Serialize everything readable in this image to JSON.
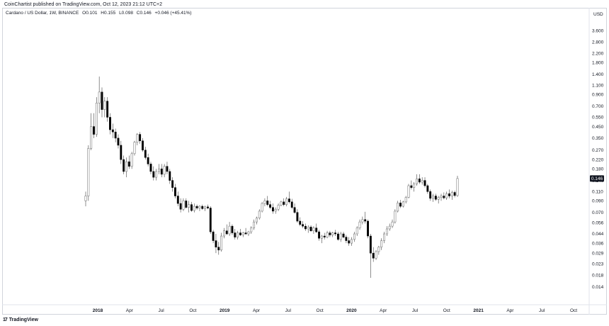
{
  "header": {
    "published": "CoinChartist published on TradingView.com, Oct 12, 2023 21:12 UTC+2"
  },
  "legend": {
    "symbol": "Cardano / US Dollar, 1W, BINANCE",
    "open": "O0.101",
    "high": "H0.155",
    "low": "L0.098",
    "close": "C0.146",
    "change": "+0.046 (+45.41%)"
  },
  "footer": {
    "logo_mark": "17",
    "brand": "TradingView"
  },
  "chart_data": {
    "type": "candlestick",
    "currency": "USD",
    "scale": "log",
    "ylim": [
      0.0114,
      4.9
    ],
    "y_ticks": [
      3.6,
      2.8,
      2.2,
      1.8,
      1.4,
      1.1,
      0.9,
      0.7,
      0.55,
      0.45,
      0.35,
      0.27,
      0.22,
      0.18,
      0.14,
      0.11,
      0.09,
      0.07,
      0.056,
      0.044,
      0.036,
      0.029,
      0.023,
      0.018,
      0.014
    ],
    "y_tick_labels": [
      "3.600",
      "2.800",
      "2.200",
      "1.800",
      "1.400",
      "1.100",
      "0.900",
      "0.700",
      "0.550",
      "0.450",
      "0.350",
      "0.270",
      "0.220",
      "0.180",
      "0.140",
      "0.110",
      "0.090",
      "0.070",
      "0.056",
      "0.044",
      "0.036",
      "0.029",
      "0.023",
      "0.018",
      "0.014"
    ],
    "x_ticks": [
      "2018",
      "Apr",
      "Jul",
      "Oct",
      "2019",
      "Apr",
      "Jul",
      "Oct",
      "2020",
      "Apr",
      "Jul",
      "Oct",
      "2021",
      "Apr",
      "Jul",
      "Oct"
    ],
    "last_price": 0.146,
    "last_price_label": "0.146",
    "grid": false,
    "candles": [
      {
        "o": 0.09,
        "h": 0.11,
        "l": 0.08,
        "c": 0.1
      },
      {
        "o": 0.1,
        "h": 0.3,
        "l": 0.09,
        "c": 0.28
      },
      {
        "o": 0.28,
        "h": 0.6,
        "l": 0.27,
        "c": 0.45
      },
      {
        "o": 0.45,
        "h": 0.6,
        "l": 0.35,
        "c": 0.38
      },
      {
        "o": 0.38,
        "h": 0.85,
        "l": 0.36,
        "c": 0.75
      },
      {
        "o": 0.75,
        "h": 1.33,
        "l": 0.6,
        "c": 0.95
      },
      {
        "o": 0.95,
        "h": 1.05,
        "l": 0.55,
        "c": 0.65
      },
      {
        "o": 0.65,
        "h": 0.85,
        "l": 0.55,
        "c": 0.78
      },
      {
        "o": 0.78,
        "h": 0.85,
        "l": 0.5,
        "c": 0.55
      },
      {
        "o": 0.55,
        "h": 0.6,
        "l": 0.38,
        "c": 0.42
      },
      {
        "o": 0.42,
        "h": 0.48,
        "l": 0.35,
        "c": 0.4
      },
      {
        "o": 0.4,
        "h": 0.43,
        "l": 0.32,
        "c": 0.35
      },
      {
        "o": 0.35,
        "h": 0.38,
        "l": 0.28,
        "c": 0.3
      },
      {
        "o": 0.3,
        "h": 0.33,
        "l": 0.2,
        "c": 0.22
      },
      {
        "o": 0.22,
        "h": 0.24,
        "l": 0.16,
        "c": 0.17
      },
      {
        "o": 0.17,
        "h": 0.23,
        "l": 0.15,
        "c": 0.21
      },
      {
        "o": 0.21,
        "h": 0.24,
        "l": 0.18,
        "c": 0.19
      },
      {
        "o": 0.19,
        "h": 0.26,
        "l": 0.18,
        "c": 0.25
      },
      {
        "o": 0.25,
        "h": 0.33,
        "l": 0.24,
        "c": 0.32
      },
      {
        "o": 0.32,
        "h": 0.39,
        "l": 0.3,
        "c": 0.38
      },
      {
        "o": 0.38,
        "h": 0.4,
        "l": 0.31,
        "c": 0.33
      },
      {
        "o": 0.33,
        "h": 0.35,
        "l": 0.26,
        "c": 0.27
      },
      {
        "o": 0.27,
        "h": 0.29,
        "l": 0.22,
        "c": 0.23
      },
      {
        "o": 0.23,
        "h": 0.25,
        "l": 0.19,
        "c": 0.2
      },
      {
        "o": 0.2,
        "h": 0.21,
        "l": 0.16,
        "c": 0.17
      },
      {
        "o": 0.17,
        "h": 0.19,
        "l": 0.14,
        "c": 0.15
      },
      {
        "o": 0.15,
        "h": 0.18,
        "l": 0.14,
        "c": 0.17
      },
      {
        "o": 0.17,
        "h": 0.2,
        "l": 0.16,
        "c": 0.18
      },
      {
        "o": 0.18,
        "h": 0.2,
        "l": 0.15,
        "c": 0.16
      },
      {
        "o": 0.16,
        "h": 0.2,
        "l": 0.15,
        "c": 0.19
      },
      {
        "o": 0.19,
        "h": 0.21,
        "l": 0.16,
        "c": 0.17
      },
      {
        "o": 0.17,
        "h": 0.18,
        "l": 0.13,
        "c": 0.14
      },
      {
        "o": 0.14,
        "h": 0.15,
        "l": 0.11,
        "c": 0.12
      },
      {
        "o": 0.12,
        "h": 0.13,
        "l": 0.095,
        "c": 0.1
      },
      {
        "o": 0.1,
        "h": 0.11,
        "l": 0.08,
        "c": 0.085
      },
      {
        "o": 0.085,
        "h": 0.095,
        "l": 0.07,
        "c": 0.075
      },
      {
        "o": 0.075,
        "h": 0.095,
        "l": 0.072,
        "c": 0.09
      },
      {
        "o": 0.09,
        "h": 0.095,
        "l": 0.076,
        "c": 0.078
      },
      {
        "o": 0.078,
        "h": 0.09,
        "l": 0.07,
        "c": 0.083
      },
      {
        "o": 0.083,
        "h": 0.088,
        "l": 0.071,
        "c": 0.073
      },
      {
        "o": 0.073,
        "h": 0.085,
        "l": 0.07,
        "c": 0.08
      },
      {
        "o": 0.08,
        "h": 0.083,
        "l": 0.074,
        "c": 0.077
      },
      {
        "o": 0.077,
        "h": 0.082,
        "l": 0.072,
        "c": 0.08
      },
      {
        "o": 0.08,
        "h": 0.083,
        "l": 0.074,
        "c": 0.076
      },
      {
        "o": 0.076,
        "h": 0.081,
        "l": 0.072,
        "c": 0.079
      },
      {
        "o": 0.079,
        "h": 0.083,
        "l": 0.075,
        "c": 0.077
      },
      {
        "o": 0.077,
        "h": 0.08,
        "l": 0.044,
        "c": 0.046
      },
      {
        "o": 0.046,
        "h": 0.048,
        "l": 0.036,
        "c": 0.038
      },
      {
        "o": 0.038,
        "h": 0.044,
        "l": 0.029,
        "c": 0.033
      },
      {
        "o": 0.033,
        "h": 0.037,
        "l": 0.028,
        "c": 0.031
      },
      {
        "o": 0.031,
        "h": 0.045,
        "l": 0.03,
        "c": 0.042
      },
      {
        "o": 0.042,
        "h": 0.05,
        "l": 0.04,
        "c": 0.047
      },
      {
        "o": 0.047,
        "h": 0.054,
        "l": 0.043,
        "c": 0.044
      },
      {
        "o": 0.044,
        "h": 0.057,
        "l": 0.042,
        "c": 0.052
      },
      {
        "o": 0.052,
        "h": 0.054,
        "l": 0.043,
        "c": 0.045
      },
      {
        "o": 0.045,
        "h": 0.049,
        "l": 0.039,
        "c": 0.041
      },
      {
        "o": 0.041,
        "h": 0.047,
        "l": 0.039,
        "c": 0.045
      },
      {
        "o": 0.045,
        "h": 0.049,
        "l": 0.042,
        "c": 0.043
      },
      {
        "o": 0.043,
        "h": 0.046,
        "l": 0.041,
        "c": 0.045
      },
      {
        "o": 0.045,
        "h": 0.05,
        "l": 0.043,
        "c": 0.044
      },
      {
        "o": 0.044,
        "h": 0.047,
        "l": 0.042,
        "c": 0.046
      },
      {
        "o": 0.046,
        "h": 0.052,
        "l": 0.044,
        "c": 0.05
      },
      {
        "o": 0.05,
        "h": 0.06,
        "l": 0.048,
        "c": 0.057
      },
      {
        "o": 0.057,
        "h": 0.064,
        "l": 0.054,
        "c": 0.062
      },
      {
        "o": 0.062,
        "h": 0.075,
        "l": 0.06,
        "c": 0.072
      },
      {
        "o": 0.072,
        "h": 0.088,
        "l": 0.07,
        "c": 0.085
      },
      {
        "o": 0.085,
        "h": 0.095,
        "l": 0.08,
        "c": 0.09
      },
      {
        "o": 0.09,
        "h": 0.1,
        "l": 0.08,
        "c": 0.083
      },
      {
        "o": 0.083,
        "h": 0.09,
        "l": 0.075,
        "c": 0.078
      },
      {
        "o": 0.078,
        "h": 0.085,
        "l": 0.068,
        "c": 0.072
      },
      {
        "o": 0.072,
        "h": 0.078,
        "l": 0.068,
        "c": 0.075
      },
      {
        "o": 0.075,
        "h": 0.085,
        "l": 0.072,
        "c": 0.082
      },
      {
        "o": 0.082,
        "h": 0.09,
        "l": 0.08,
        "c": 0.088
      },
      {
        "o": 0.088,
        "h": 0.095,
        "l": 0.08,
        "c": 0.083
      },
      {
        "o": 0.083,
        "h": 0.098,
        "l": 0.08,
        "c": 0.094
      },
      {
        "o": 0.094,
        "h": 0.11,
        "l": 0.085,
        "c": 0.088
      },
      {
        "o": 0.088,
        "h": 0.094,
        "l": 0.075,
        "c": 0.078
      },
      {
        "o": 0.078,
        "h": 0.085,
        "l": 0.068,
        "c": 0.07
      },
      {
        "o": 0.07,
        "h": 0.075,
        "l": 0.056,
        "c": 0.058
      },
      {
        "o": 0.058,
        "h": 0.063,
        "l": 0.052,
        "c": 0.054
      },
      {
        "o": 0.054,
        "h": 0.058,
        "l": 0.05,
        "c": 0.052
      },
      {
        "o": 0.052,
        "h": 0.055,
        "l": 0.047,
        "c": 0.049
      },
      {
        "o": 0.049,
        "h": 0.053,
        "l": 0.045,
        "c": 0.051
      },
      {
        "o": 0.051,
        "h": 0.053,
        "l": 0.046,
        "c": 0.047
      },
      {
        "o": 0.047,
        "h": 0.052,
        "l": 0.044,
        "c": 0.05
      },
      {
        "o": 0.05,
        "h": 0.055,
        "l": 0.045,
        "c": 0.046
      },
      {
        "o": 0.046,
        "h": 0.048,
        "l": 0.038,
        "c": 0.04
      },
      {
        "o": 0.04,
        "h": 0.043,
        "l": 0.036,
        "c": 0.042
      },
      {
        "o": 0.042,
        "h": 0.045,
        "l": 0.039,
        "c": 0.041
      },
      {
        "o": 0.041,
        "h": 0.047,
        "l": 0.04,
        "c": 0.045
      },
      {
        "o": 0.045,
        "h": 0.047,
        "l": 0.041,
        "c": 0.043
      },
      {
        "o": 0.043,
        "h": 0.046,
        "l": 0.041,
        "c": 0.045
      },
      {
        "o": 0.045,
        "h": 0.048,
        "l": 0.042,
        "c": 0.044
      },
      {
        "o": 0.044,
        "h": 0.046,
        "l": 0.038,
        "c": 0.039
      },
      {
        "o": 0.039,
        "h": 0.046,
        "l": 0.037,
        "c": 0.044
      },
      {
        "o": 0.044,
        "h": 0.046,
        "l": 0.04,
        "c": 0.041
      },
      {
        "o": 0.041,
        "h": 0.043,
        "l": 0.036,
        "c": 0.038
      },
      {
        "o": 0.038,
        "h": 0.041,
        "l": 0.034,
        "c": 0.036
      },
      {
        "o": 0.036,
        "h": 0.041,
        "l": 0.034,
        "c": 0.039
      },
      {
        "o": 0.039,
        "h": 0.046,
        "l": 0.037,
        "c": 0.044
      },
      {
        "o": 0.044,
        "h": 0.052,
        "l": 0.042,
        "c": 0.05
      },
      {
        "o": 0.05,
        "h": 0.06,
        "l": 0.048,
        "c": 0.057
      },
      {
        "o": 0.057,
        "h": 0.064,
        "l": 0.054,
        "c": 0.06
      },
      {
        "o": 0.06,
        "h": 0.071,
        "l": 0.055,
        "c": 0.058
      },
      {
        "o": 0.058,
        "h": 0.06,
        "l": 0.04,
        "c": 0.042
      },
      {
        "o": 0.042,
        "h": 0.044,
        "l": 0.017,
        "c": 0.029
      },
      {
        "o": 0.029,
        "h": 0.033,
        "l": 0.024,
        "c": 0.026
      },
      {
        "o": 0.026,
        "h": 0.031,
        "l": 0.025,
        "c": 0.03
      },
      {
        "o": 0.03,
        "h": 0.034,
        "l": 0.028,
        "c": 0.033
      },
      {
        "o": 0.033,
        "h": 0.04,
        "l": 0.031,
        "c": 0.038
      },
      {
        "o": 0.038,
        "h": 0.046,
        "l": 0.036,
        "c": 0.044
      },
      {
        "o": 0.044,
        "h": 0.052,
        "l": 0.042,
        "c": 0.049
      },
      {
        "o": 0.049,
        "h": 0.055,
        "l": 0.047,
        "c": 0.052
      },
      {
        "o": 0.052,
        "h": 0.06,
        "l": 0.05,
        "c": 0.057
      },
      {
        "o": 0.057,
        "h": 0.075,
        "l": 0.055,
        "c": 0.072
      },
      {
        "o": 0.072,
        "h": 0.09,
        "l": 0.07,
        "c": 0.086
      },
      {
        "o": 0.086,
        "h": 0.092,
        "l": 0.077,
        "c": 0.08
      },
      {
        "o": 0.08,
        "h": 0.09,
        "l": 0.078,
        "c": 0.088
      },
      {
        "o": 0.088,
        "h": 0.1,
        "l": 0.085,
        "c": 0.097
      },
      {
        "o": 0.097,
        "h": 0.13,
        "l": 0.095,
        "c": 0.125
      },
      {
        "o": 0.125,
        "h": 0.14,
        "l": 0.115,
        "c": 0.12
      },
      {
        "o": 0.12,
        "h": 0.135,
        "l": 0.11,
        "c": 0.13
      },
      {
        "o": 0.13,
        "h": 0.16,
        "l": 0.125,
        "c": 0.145
      },
      {
        "o": 0.145,
        "h": 0.16,
        "l": 0.13,
        "c": 0.135
      },
      {
        "o": 0.135,
        "h": 0.15,
        "l": 0.128,
        "c": 0.14
      },
      {
        "o": 0.14,
        "h": 0.15,
        "l": 0.12,
        "c": 0.125
      },
      {
        "o": 0.125,
        "h": 0.13,
        "l": 0.105,
        "c": 0.11
      },
      {
        "o": 0.11,
        "h": 0.115,
        "l": 0.09,
        "c": 0.095
      },
      {
        "o": 0.095,
        "h": 0.105,
        "l": 0.088,
        "c": 0.1
      },
      {
        "o": 0.1,
        "h": 0.105,
        "l": 0.09,
        "c": 0.093
      },
      {
        "o": 0.093,
        "h": 0.1,
        "l": 0.085,
        "c": 0.097
      },
      {
        "o": 0.097,
        "h": 0.105,
        "l": 0.09,
        "c": 0.1
      },
      {
        "o": 0.1,
        "h": 0.108,
        "l": 0.093,
        "c": 0.096
      },
      {
        "o": 0.096,
        "h": 0.11,
        "l": 0.092,
        "c": 0.105
      },
      {
        "o": 0.105,
        "h": 0.115,
        "l": 0.095,
        "c": 0.1
      },
      {
        "o": 0.1,
        "h": 0.112,
        "l": 0.092,
        "c": 0.108
      },
      {
        "o": 0.108,
        "h": 0.112,
        "l": 0.097,
        "c": 0.101
      },
      {
        "o": 0.101,
        "h": 0.155,
        "l": 0.098,
        "c": 0.146
      }
    ]
  }
}
